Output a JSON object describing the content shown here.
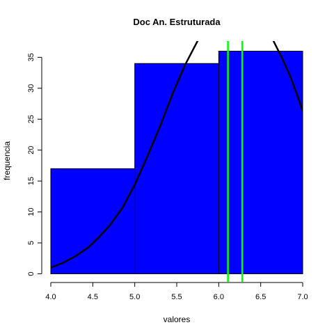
{
  "chart_data": {
    "type": "bar",
    "title": "Doc An. Estruturada",
    "xlabel": "valores",
    "ylabel": "frequencia",
    "bins": [
      {
        "start": 4.0,
        "end": 5.0,
        "count": 17
      },
      {
        "start": 5.0,
        "end": 6.0,
        "count": 34
      },
      {
        "start": 6.0,
        "end": 7.0,
        "count": 36
      }
    ],
    "bar_color": "#0000ff",
    "xlim": [
      4.0,
      7.0
    ],
    "ylim": [
      0,
      36
    ],
    "xticks": [
      "4.0",
      "4.5",
      "5.0",
      "5.5",
      "6.0",
      "6.5",
      "7.0"
    ],
    "yticks": [
      "0",
      "5",
      "10",
      "15",
      "20",
      "25",
      "30",
      "35"
    ],
    "density_curve": {
      "color": "#000000",
      "points": [
        [
          4.0,
          1.0
        ],
        [
          4.15,
          1.8
        ],
        [
          4.3,
          2.9
        ],
        [
          4.45,
          4.3
        ],
        [
          4.55,
          5.6
        ],
        [
          4.7,
          7.8
        ],
        [
          4.85,
          10.6
        ],
        [
          5.0,
          14.4
        ],
        [
          5.15,
          19.0
        ],
        [
          5.3,
          23.8
        ],
        [
          5.45,
          29.1
        ],
        [
          5.6,
          33.8
        ],
        [
          5.75,
          37.7
        ]
      ],
      "points_right": [
        [
          6.65,
          37.7
        ],
        [
          6.75,
          35.0
        ],
        [
          6.85,
          32.0
        ],
        [
          6.95,
          28.3
        ],
        [
          7.0,
          26.3
        ]
      ]
    },
    "vertical_lines": {
      "color": "#00ff00",
      "x": [
        6.11,
        6.28
      ]
    },
    "grid": false,
    "legend": "none"
  }
}
